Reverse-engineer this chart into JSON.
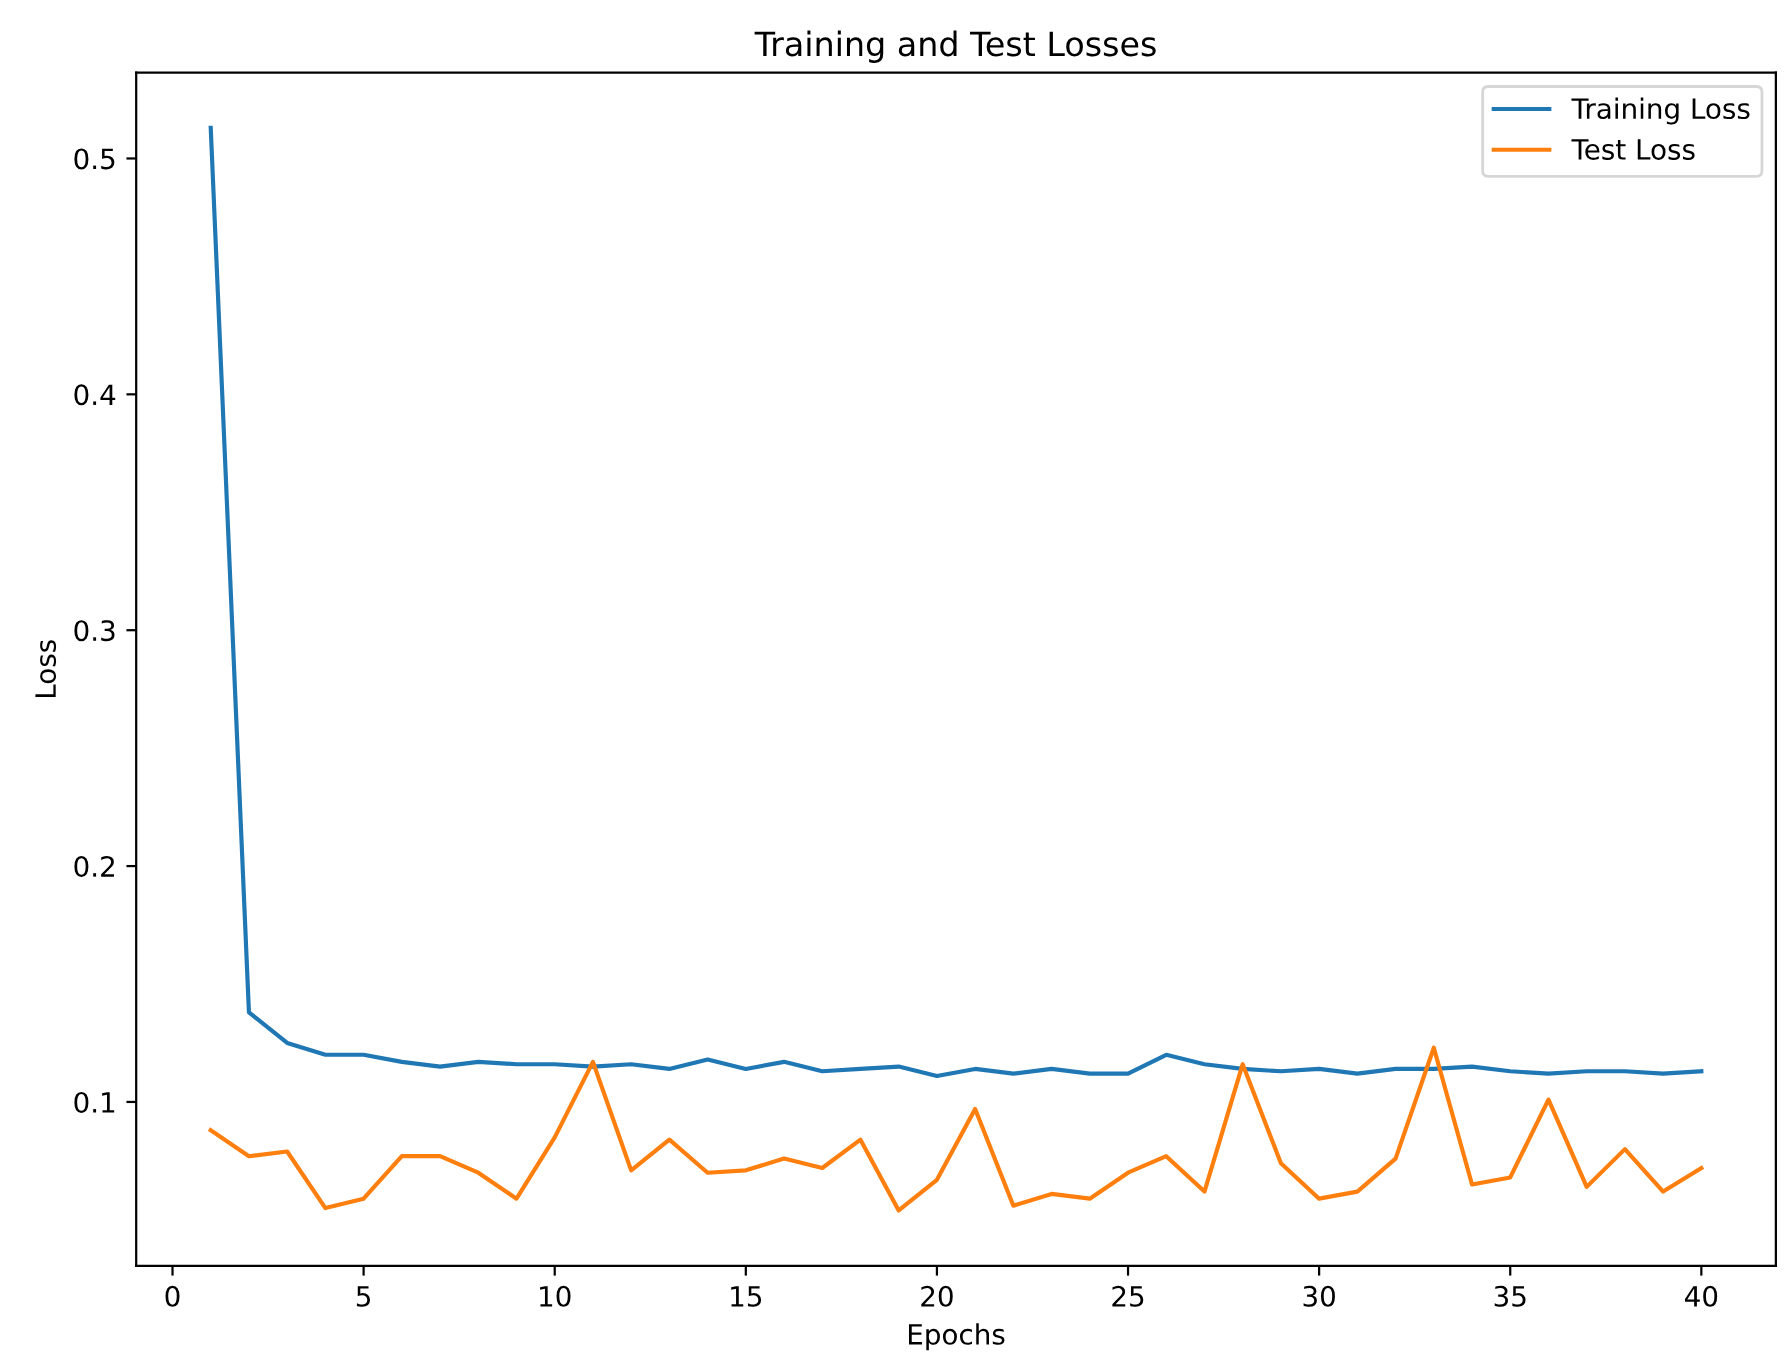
{
  "chart_data": {
    "type": "line",
    "title": "Training and Test Losses",
    "xlabel": "Epochs",
    "ylabel": "Loss",
    "x": [
      1,
      2,
      3,
      4,
      5,
      6,
      7,
      8,
      9,
      10,
      11,
      12,
      13,
      14,
      15,
      16,
      17,
      18,
      19,
      20,
      21,
      22,
      23,
      24,
      25,
      26,
      27,
      28,
      29,
      30,
      31,
      32,
      33,
      34,
      35,
      36,
      37,
      38,
      39,
      40
    ],
    "series": [
      {
        "name": "Training Loss",
        "color": "#1f77b4",
        "values": [
          0.513,
          0.138,
          0.125,
          0.12,
          0.12,
          0.117,
          0.115,
          0.117,
          0.116,
          0.116,
          0.115,
          0.116,
          0.114,
          0.118,
          0.114,
          0.117,
          0.113,
          0.114,
          0.115,
          0.111,
          0.114,
          0.112,
          0.114,
          0.112,
          0.112,
          0.12,
          0.116,
          0.114,
          0.113,
          0.114,
          0.112,
          0.114,
          0.114,
          0.115,
          0.113,
          0.112,
          0.113,
          0.113,
          0.112,
          0.113
        ]
      },
      {
        "name": "Test Loss",
        "color": "#ff7f0e",
        "values": [
          0.088,
          0.077,
          0.079,
          0.055,
          0.059,
          0.077,
          0.077,
          0.07,
          0.059,
          0.085,
          0.117,
          0.071,
          0.084,
          0.07,
          0.071,
          0.076,
          0.072,
          0.084,
          0.054,
          0.067,
          0.097,
          0.056,
          0.061,
          0.059,
          0.07,
          0.077,
          0.062,
          0.116,
          0.074,
          0.059,
          0.062,
          0.076,
          0.123,
          0.065,
          0.068,
          0.101,
          0.064,
          0.08,
          0.062,
          0.072
        ]
      }
    ],
    "xlim": [
      -0.95,
      41.95
    ],
    "xticks": [
      0,
      5,
      10,
      15,
      20,
      25,
      30,
      35,
      40
    ],
    "ylim": [
      0.0305,
      0.5364
    ],
    "yticks": [
      0.1,
      0.2,
      0.3,
      0.4,
      0.5
    ],
    "legend": "top right",
    "grid": false,
    "marker": "none",
    "line_style": "solid"
  }
}
